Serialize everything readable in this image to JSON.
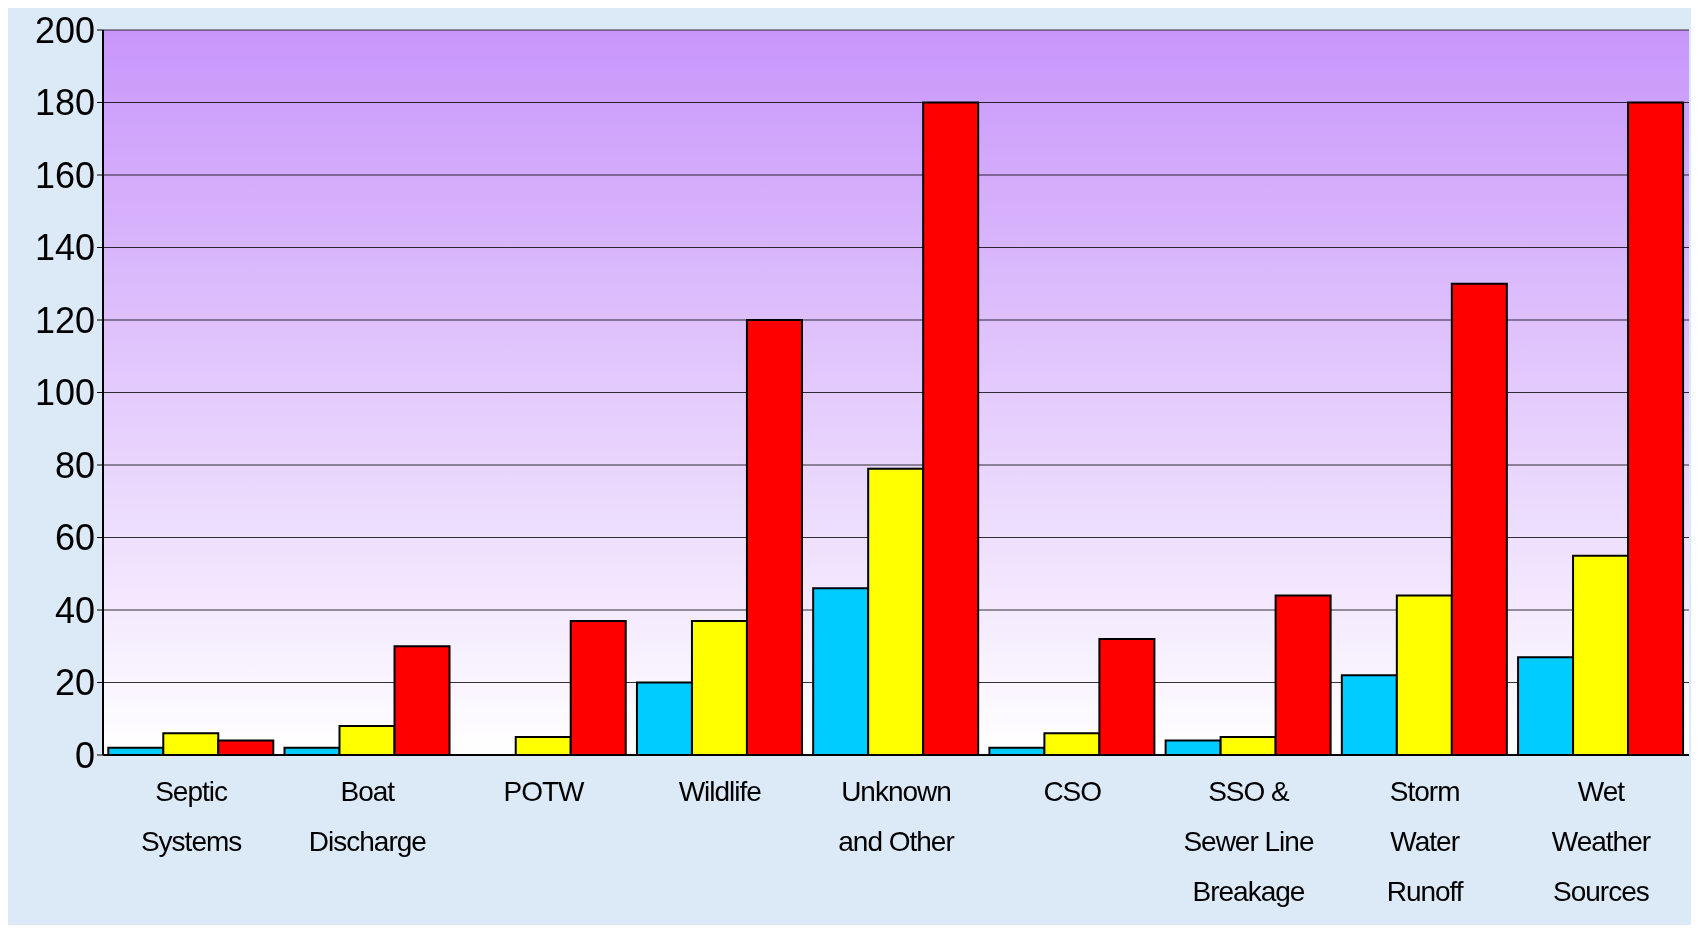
{
  "chart_data": {
    "type": "bar",
    "categories": [
      "Septic Systems",
      "Boat Discharge",
      "POTW",
      "Wildlife",
      "Unknown and Other",
      "CSO",
      "SSO & Sewer Line Breakage",
      "Storm Water Runoff",
      "Wet Weather Sources"
    ],
    "series": [
      {
        "color": "#00ccff",
        "values": [
          2,
          2,
          0,
          20,
          46,
          2,
          4,
          22,
          27
        ]
      },
      {
        "color": "#ffff00",
        "values": [
          6,
          8,
          5,
          37,
          79,
          6,
          5,
          44,
          55
        ]
      },
      {
        "color": "#ff0000",
        "values": [
          4,
          30,
          37,
          120,
          180,
          32,
          44,
          130,
          180
        ]
      }
    ],
    "ylim": [
      0,
      200
    ],
    "yticks": [
      0,
      20,
      40,
      60,
      80,
      100,
      120,
      140,
      160,
      180,
      200
    ],
    "grid": "y",
    "legend": false
  }
}
